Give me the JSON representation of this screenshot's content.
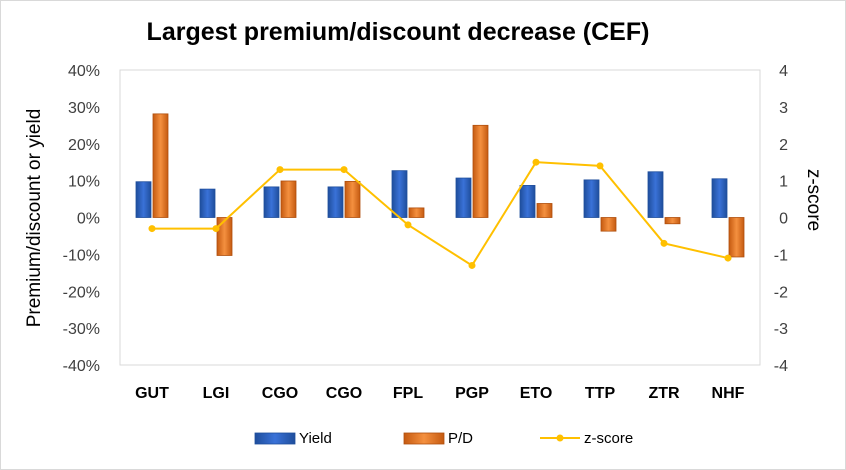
{
  "chart_data": {
    "type": "bar",
    "title": "Largest premium/discount decrease (CEF)",
    "categories": [
      "GUT",
      "LGI",
      "CGO",
      "CGO",
      "FPL",
      "PGP",
      "ETO",
      "TTP",
      "ZTR",
      "NHF"
    ],
    "series": [
      {
        "name": "Yield",
        "type": "bar",
        "axis": "left",
        "color": "#2e62c4",
        "values": [
          0.097,
          0.077,
          0.083,
          0.083,
          0.127,
          0.107,
          0.087,
          0.102,
          0.124,
          0.105
        ]
      },
      {
        "name": "P/D",
        "type": "bar",
        "axis": "left",
        "color": "#ed7d31",
        "values": [
          0.281,
          -0.103,
          0.099,
          0.098,
          0.026,
          0.25,
          0.038,
          -0.037,
          -0.017,
          -0.107
        ]
      },
      {
        "name": "z-score",
        "type": "line",
        "axis": "right",
        "color": "#ffc000",
        "values": [
          -0.3,
          -0.3,
          1.3,
          1.3,
          -0.2,
          -1.3,
          1.5,
          1.4,
          -0.7,
          -1.1
        ]
      }
    ],
    "ylabel": "Premium/discount or yield",
    "y2label": "z-score",
    "ylim": [
      -0.4,
      0.4
    ],
    "y2lim": [
      -4,
      4
    ],
    "yticks": [
      "40%",
      "30%",
      "20%",
      "10%",
      "0%",
      "-10%",
      "-20%",
      "-30%",
      "-40%"
    ],
    "y2ticks": [
      "4",
      "3",
      "2",
      "1",
      "0",
      "-1",
      "-2",
      "-3",
      "-4"
    ],
    "grid": false,
    "legend": "bottom"
  }
}
